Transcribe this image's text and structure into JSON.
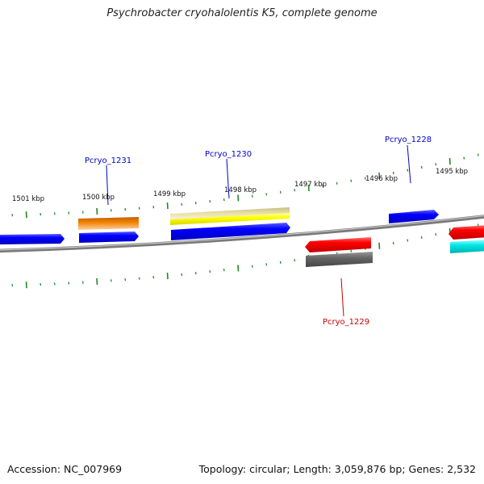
{
  "title": "Psychrobacter cryohalolentis K5, complete genome",
  "footer": {
    "accession": "Accession: NC_007969",
    "summary": "Topology: circular; Length: 3,059,876 bp; Genes: 2,532"
  },
  "scale": {
    "labels": [
      "1501 kbp",
      "1500 kbp",
      "1499 kbp",
      "1498 kbp",
      "1497 kbp",
      "1496 kbp",
      "1495 kbp"
    ]
  },
  "genes": {
    "pcryo_1231": {
      "label": "Pcryo_1231",
      "color": "#0000cc"
    },
    "pcryo_1230": {
      "label": "Pcryo_1230",
      "color": "#0000cc"
    },
    "pcryo_1228": {
      "label": "Pcryo_1228",
      "color": "#0000cc"
    },
    "pcryo_1229": {
      "label": "Pcryo_1229",
      "color": "#cc0000"
    }
  },
  "colors": {
    "forward_cds": "#0000ff",
    "reverse_cds": "#ff0000",
    "orange_feature": "#f08000",
    "yellow_feature": "#ffff00",
    "tan_feature": "#e8e0a0",
    "gray_feature": "#666666",
    "cyan_feature": "#00e5e5",
    "ticks": "#228822",
    "backbone": "#7a7a7a"
  }
}
